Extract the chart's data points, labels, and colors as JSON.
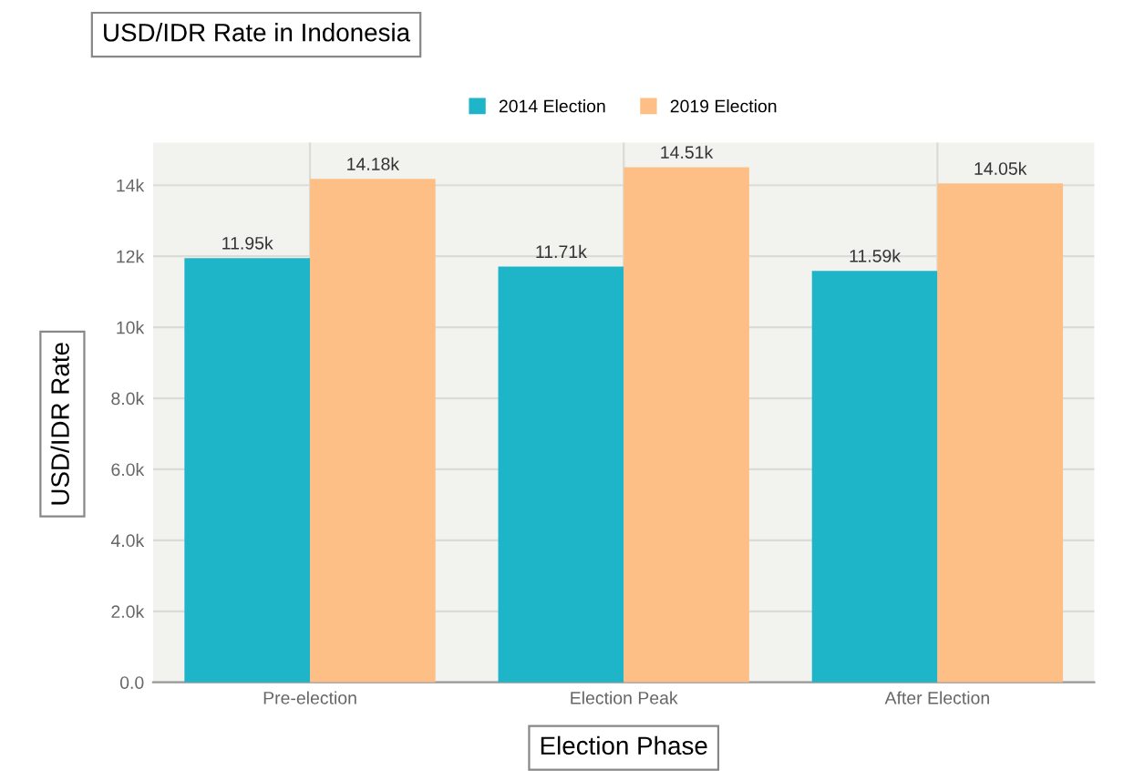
{
  "chart_data": {
    "type": "bar",
    "title": "USD/IDR Rate in Indonesia",
    "xlabel": "Election Phase",
    "ylabel": "USD/IDR Rate",
    "categories": [
      "Pre-election",
      "Election Peak",
      "After Election"
    ],
    "series": [
      {
        "name": "2014 Election",
        "color": "#1fb5c9",
        "values": [
          11950,
          11710,
          11590
        ],
        "value_labels": [
          "11.95k",
          "11.71k",
          "11.59k"
        ]
      },
      {
        "name": "2019 Election",
        "color": "#fdbf85",
        "values": [
          14180,
          14510,
          14050
        ],
        "value_labels": [
          "14.18k",
          "14.51k",
          "14.05k"
        ]
      }
    ],
    "ylim": [
      0,
      15200
    ],
    "yticks": [
      {
        "value": 0,
        "label": "0.0"
      },
      {
        "value": 2000,
        "label": "2.0k"
      },
      {
        "value": 4000,
        "label": "4.0k"
      },
      {
        "value": 6000,
        "label": "6.0k"
      },
      {
        "value": 8000,
        "label": "8.0k"
      },
      {
        "value": 10000,
        "label": "10k"
      },
      {
        "value": 12000,
        "label": "12k"
      },
      {
        "value": 14000,
        "label": "14k"
      }
    ],
    "grid": true,
    "legend": "top"
  }
}
